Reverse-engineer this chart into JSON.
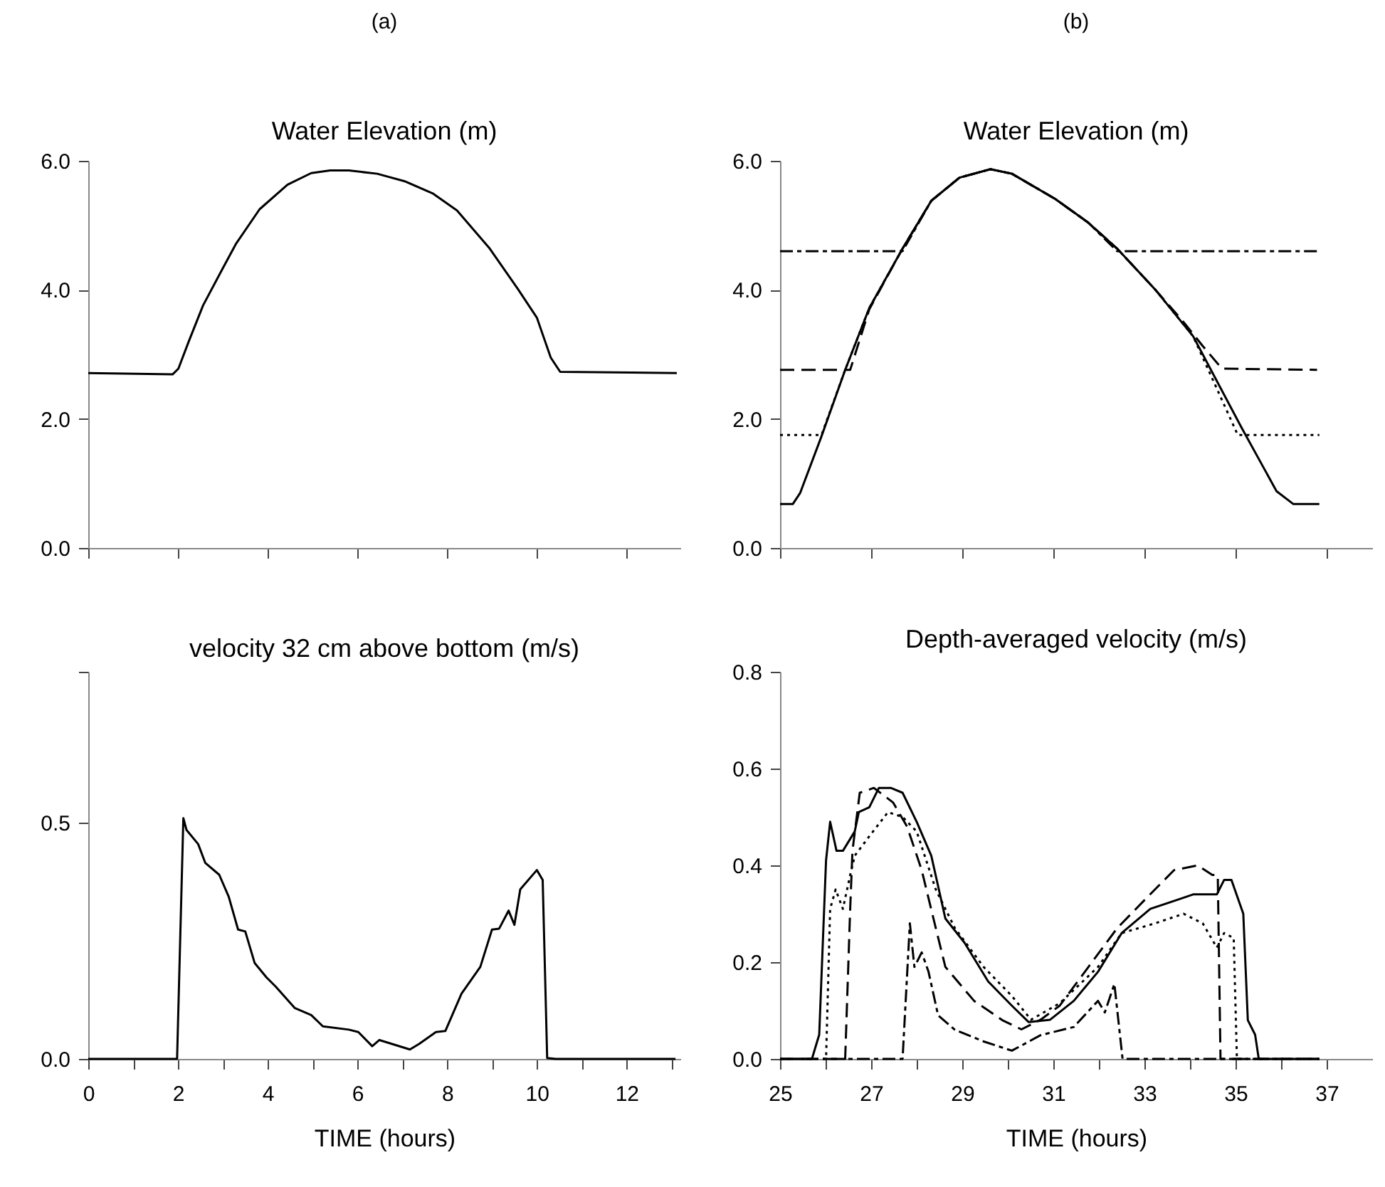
{
  "chart_data": [
    {
      "type": "line",
      "title": "(a)",
      "subtitle": "Water Elevation (m)",
      "xlim": [
        0,
        13.2
      ],
      "xticks": [
        {
          "value": 0,
          "label": null
        },
        {
          "value": 2,
          "label": null
        },
        {
          "value": 4,
          "label": null
        },
        {
          "value": 6,
          "label": null
        },
        {
          "value": 8,
          "label": null
        },
        {
          "value": 10,
          "label": null
        },
        {
          "value": 12,
          "label": null
        }
      ],
      "ylim": [
        0,
        6
      ],
      "yticks": [
        {
          "value": 0,
          "label": "0.0"
        },
        {
          "value": 2,
          "label": "2.0"
        },
        {
          "value": 4,
          "label": "4.0"
        },
        {
          "value": 6,
          "label": "6.0"
        }
      ],
      "tick_labels": "y",
      "grid": false,
      "series": [
        {
          "color": "#000000",
          "line_style": "solid",
          "x": [
            0,
            1.88,
            2.01,
            2.24,
            2.56,
            2.98,
            3.29,
            3.82,
            4.44,
            4.97,
            5.39,
            5.81,
            6.44,
            7.07,
            7.69,
            8.22,
            8.95,
            9.58,
            10.0,
            10.31,
            10.52,
            12.1,
            13.12
          ],
          "values": [
            2.71,
            2.69,
            2.78,
            3.2,
            3.76,
            4.31,
            4.71,
            5.25,
            5.63,
            5.81,
            5.85,
            5.85,
            5.8,
            5.68,
            5.49,
            5.23,
            4.64,
            4.01,
            3.57,
            2.95,
            2.73,
            2.72,
            2.71
          ]
        }
      ]
    },
    {
      "type": "line",
      "title": "(b)",
      "subtitle": "Water Elevation (m)",
      "xlim": [
        25,
        38
      ],
      "xticks": [
        {
          "value": 25,
          "label": null
        },
        {
          "value": 27,
          "label": null
        },
        {
          "value": 29,
          "label": null
        },
        {
          "value": 31,
          "label": null
        },
        {
          "value": 33,
          "label": null
        },
        {
          "value": 35,
          "label": null
        },
        {
          "value": 37,
          "label": null
        }
      ],
      "ylim": [
        0,
        6
      ],
      "yticks": [
        {
          "value": 0,
          "label": "0.0"
        },
        {
          "value": 2,
          "label": "2.0"
        },
        {
          "value": 4,
          "label": "4.0"
        },
        {
          "value": 6,
          "label": "6.0"
        }
      ],
      "tick_labels": "y",
      "grid": false,
      "series": [
        {
          "color": "#000000",
          "line_style": "solid",
          "x": [
            25,
            25.28,
            25.44,
            25.91,
            26.43,
            26.96,
            27.69,
            28.32,
            28.94,
            29.62,
            30.09,
            31.04,
            31.77,
            32.4,
            33.23,
            34.07,
            35.12,
            35.9,
            36.27,
            36.84
          ],
          "values": [
            0.68,
            0.68,
            0.85,
            1.73,
            2.76,
            3.72,
            4.64,
            5.38,
            5.74,
            5.87,
            5.8,
            5.41,
            5.04,
            4.64,
            4.01,
            3.28,
            1.88,
            0.88,
            0.68,
            0.68
          ]
        },
        {
          "color": "#000000",
          "line_style": "dashed",
          "x": [
            25,
            26.54,
            26.96,
            27.69,
            28.32,
            28.94,
            29.62,
            30.09,
            31.04,
            31.77,
            32.4,
            33.23,
            33.86,
            34.28,
            34.7,
            36.79
          ],
          "values": [
            2.76,
            2.76,
            3.7,
            4.64,
            5.38,
            5.74,
            5.87,
            5.8,
            5.41,
            5.04,
            4.64,
            4.01,
            3.5,
            3.13,
            2.78,
            2.76
          ]
        },
        {
          "color": "#000000",
          "line_style": "dotted",
          "x": [
            25,
            25.91,
            26.43,
            26.96,
            27.69,
            28.32,
            28.94,
            29.62,
            30.09,
            31.04,
            31.77,
            32.4,
            33.23,
            34.07,
            35.05,
            36.84
          ],
          "values": [
            1.75,
            1.75,
            2.76,
            3.72,
            4.64,
            5.38,
            5.74,
            5.87,
            5.8,
            5.41,
            5.04,
            4.64,
            4.01,
            3.28,
            1.75,
            1.75
          ]
        },
        {
          "color": "#000000",
          "line_style": "dashdot",
          "x": [
            25,
            27.69,
            28.32,
            28.94,
            29.62,
            30.09,
            31.04,
            31.77,
            32.4,
            36.84
          ],
          "values": [
            4.6,
            4.6,
            5.38,
            5.74,
            5.87,
            5.8,
            5.41,
            5.04,
            4.6,
            4.6
          ]
        }
      ]
    },
    {
      "type": "line",
      "title": "velocity 32 cm above bottom (m/s)",
      "xlabel": "TIME (hours)",
      "xlim": [
        0,
        13.2
      ],
      "xticks": [
        0,
        {
          "value": 1,
          "label": null
        },
        2,
        {
          "value": 3,
          "label": null
        },
        4,
        {
          "value": 5,
          "label": null
        },
        6,
        {
          "value": 7,
          "label": null
        },
        8,
        {
          "value": 9,
          "label": null
        },
        10,
        {
          "value": 11,
          "label": null
        },
        12,
        {
          "value": 13,
          "label": null
        }
      ],
      "ylim": [
        0,
        0.82
      ],
      "yticks": [
        {
          "value": 0,
          "label": "0.0"
        },
        {
          "value": 0.5,
          "label": "0.5"
        },
        {
          "value": 0.82,
          "label": null
        }
      ],
      "grid": false,
      "series": [
        {
          "color": "#000000",
          "line_style": "solid",
          "x": [
            0,
            1.98,
            2.12,
            2.19,
            2.45,
            2.61,
            2.92,
            3.13,
            3.34,
            3.5,
            3.71,
            3.97,
            4.18,
            4.6,
            4.97,
            5.23,
            5.81,
            6.02,
            6.33,
            6.49,
            7.17,
            7.38,
            7.75,
            7.96,
            8.32,
            8.74,
            9.0,
            9.16,
            9.37,
            9.5,
            9.63,
            10.0,
            10.13,
            10.23,
            10.42,
            13.09
          ],
          "values": [
            0,
            0,
            0.51,
            0.485,
            0.455,
            0.415,
            0.39,
            0.344,
            0.274,
            0.27,
            0.203,
            0.173,
            0.153,
            0.108,
            0.093,
            0.069,
            0.062,
            0.057,
            0.027,
            0.04,
            0.02,
            0.032,
            0.057,
            0.059,
            0.138,
            0.195,
            0.274,
            0.276,
            0.314,
            0.284,
            0.359,
            0.4,
            0.379,
            0.002,
            0,
            0
          ]
        }
      ]
    },
    {
      "type": "line",
      "title": "Depth-averaged velocity (m/s)",
      "xlabel": "TIME (hours)",
      "xlim": [
        25,
        38
      ],
      "xticks": [
        25,
        {
          "value": 26,
          "label": null
        },
        27,
        {
          "value": 28,
          "label": null
        },
        29,
        {
          "value": 30,
          "label": null
        },
        31,
        {
          "value": 32,
          "label": null
        },
        33,
        {
          "value": 34,
          "label": null
        },
        35,
        {
          "value": 36,
          "label": null
        },
        37
      ],
      "ylim": [
        0,
        0.8
      ],
      "yticks": [
        {
          "value": 0,
          "label": "0.0"
        },
        {
          "value": 0.2,
          "label": "0.2"
        },
        {
          "value": 0.4,
          "label": "0.4"
        },
        {
          "value": 0.6,
          "label": "0.6"
        },
        {
          "value": 0.8,
          "label": "0.8"
        }
      ],
      "grid": false,
      "series": [
        {
          "color": "#000000",
          "line_style": "solid",
          "x": [
            25,
            25.7,
            25.86,
            26.01,
            26.1,
            26.24,
            26.38,
            26.64,
            26.73,
            26.96,
            27.17,
            27.43,
            27.69,
            28.0,
            28.32,
            28.63,
            29.05,
            29.57,
            30.09,
            30.46,
            30.93,
            31.45,
            31.98,
            32.5,
            33.13,
            33.76,
            34.07,
            34.38,
            34.59,
            34.75,
            34.91,
            35.17,
            35.27,
            35.43,
            35.51,
            36.84
          ],
          "values": [
            0,
            0,
            0.05,
            0.41,
            0.49,
            0.43,
            0.43,
            0.47,
            0.51,
            0.52,
            0.56,
            0.56,
            0.55,
            0.49,
            0.42,
            0.29,
            0.24,
            0.16,
            0.11,
            0.076,
            0.081,
            0.12,
            0.18,
            0.26,
            0.31,
            0.33,
            0.34,
            0.34,
            0.34,
            0.37,
            0.37,
            0.3,
            0.08,
            0.05,
            0,
            0
          ]
        },
        {
          "color": "#000000",
          "line_style": "dashed",
          "x": [
            25,
            26.43,
            26.54,
            26.59,
            26.75,
            27.06,
            27.48,
            27.79,
            28.11,
            28.42,
            28.63,
            29.26,
            29.88,
            30.3,
            30.72,
            31.14,
            31.77,
            32.4,
            33.02,
            33.65,
            34.17,
            34.49,
            34.61,
            34.67,
            36.84
          ],
          "values": [
            0,
            0,
            0.31,
            0.43,
            0.55,
            0.56,
            0.53,
            0.48,
            0.39,
            0.27,
            0.19,
            0.12,
            0.08,
            0.061,
            0.081,
            0.11,
            0.19,
            0.27,
            0.33,
            0.39,
            0.4,
            0.38,
            0.38,
            0,
            0
          ]
        },
        {
          "color": "#000000",
          "line_style": "dotted",
          "x": [
            25,
            26.01,
            26.1,
            26.22,
            26.38,
            26.54,
            26.64,
            26.96,
            27.37,
            27.69,
            28.0,
            28.42,
            28.84,
            29.47,
            30.09,
            30.51,
            31.14,
            31.98,
            32.5,
            33.23,
            33.86,
            34.28,
            34.59,
            34.75,
            34.96,
            35.03,
            36.84
          ],
          "values": [
            0,
            0,
            0.31,
            0.35,
            0.31,
            0.38,
            0.42,
            0.46,
            0.51,
            0.5,
            0.47,
            0.35,
            0.27,
            0.19,
            0.13,
            0.081,
            0.115,
            0.19,
            0.26,
            0.28,
            0.3,
            0.28,
            0.23,
            0.26,
            0.25,
            0,
            0
          ]
        },
        {
          "color": "#000000",
          "line_style": "dashdot",
          "x": [
            25,
            27.69,
            27.85,
            27.95,
            28.11,
            28.26,
            28.47,
            28.84,
            29.47,
            30.09,
            30.72,
            31.45,
            31.98,
            32.13,
            32.34,
            32.52,
            36.84
          ],
          "values": [
            0,
            0,
            0.28,
            0.19,
            0.22,
            0.18,
            0.09,
            0.06,
            0.036,
            0.017,
            0.049,
            0.066,
            0.12,
            0.096,
            0.155,
            0,
            0
          ]
        }
      ]
    }
  ]
}
